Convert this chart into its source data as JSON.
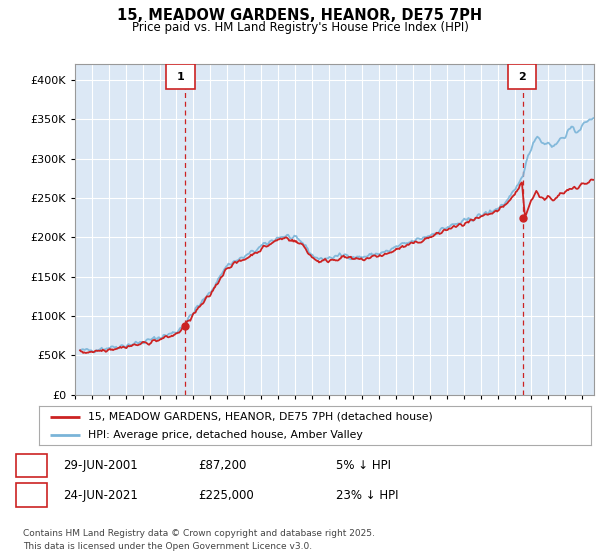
{
  "title": "15, MEADOW GARDENS, HEANOR, DE75 7PH",
  "subtitle": "Price paid vs. HM Land Registry's House Price Index (HPI)",
  "ylim": [
    0,
    420000
  ],
  "xlim_start": 1995.3,
  "xlim_end": 2025.7,
  "transaction1_x": 2001.49,
  "transaction1_y": 87200,
  "transaction1_label": "1",
  "transaction2_x": 2021.48,
  "transaction2_y": 225000,
  "transaction2_label": "2",
  "legend_line1": "15, MEADOW GARDENS, HEANOR, DE75 7PH (detached house)",
  "legend_line2": "HPI: Average price, detached house, Amber Valley",
  "note1_label": "1",
  "note1_date": "29-JUN-2001",
  "note1_price": "£87,200",
  "note1_pct": "5% ↓ HPI",
  "note2_label": "2",
  "note2_date": "24-JUN-2021",
  "note2_price": "£225,000",
  "note2_pct": "23% ↓ HPI",
  "footer": "Contains HM Land Registry data © Crown copyright and database right 2025.\nThis data is licensed under the Open Government Licence v3.0.",
  "hpi_color": "#7ab4d8",
  "price_color": "#cc2222",
  "vline_color": "#cc2222",
  "bg_color": "#ffffff",
  "plot_bg_color": "#dce8f5",
  "grid_color": "#ffffff"
}
